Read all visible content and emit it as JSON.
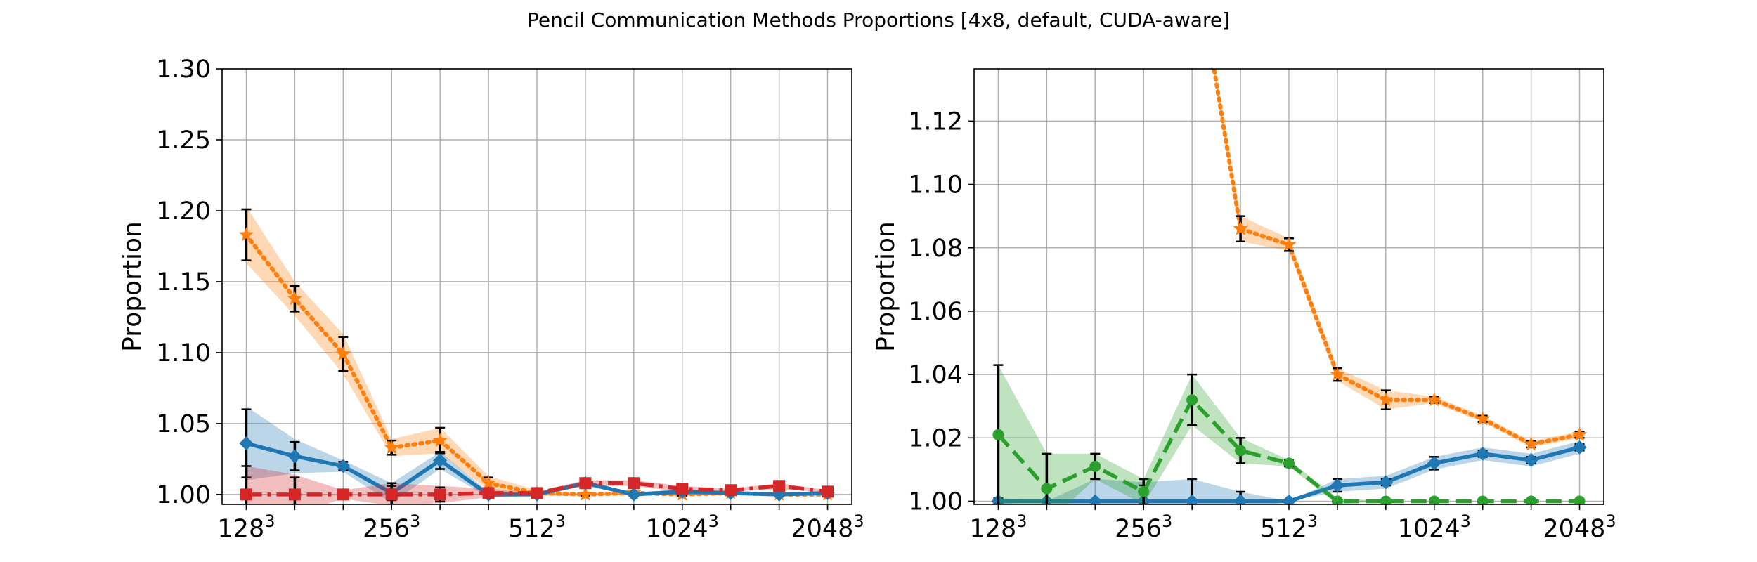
{
  "figure": {
    "title": "Pencil Communication Methods Proportions [4x8, default, CUDA-aware]"
  },
  "colors": {
    "blue": "#1f77b4",
    "orange": "#ff7f0e",
    "green": "#2ca02c",
    "red": "#d62728",
    "grid": "#b0b0b0",
    "errorbar": "#000000"
  },
  "chart_data": [
    {
      "type": "line",
      "ylabel": "Proportion",
      "xlabel": "",
      "x": [
        1,
        2,
        3,
        4,
        5,
        6,
        7,
        8,
        9,
        10,
        11,
        12,
        13
      ],
      "xtick_values": [
        1,
        4,
        7,
        10,
        13
      ],
      "xtick_labels": [
        "128",
        "256",
        "512",
        "1024",
        "2048"
      ],
      "xtick_superscript": "3",
      "xlim": [
        0.5,
        13.5
      ],
      "ylim": [
        0.993,
        1.3
      ],
      "ytick_values": [
        1.0,
        1.05,
        1.1,
        1.15,
        1.2,
        1.25,
        1.3
      ],
      "ytick_labels": [
        "1.00",
        "1.05",
        "1.10",
        "1.15",
        "1.20",
        "1.25",
        "1.30"
      ],
      "grid": true,
      "series": [
        {
          "color_key": "orange",
          "linestyle": "dotted",
          "marker": "star",
          "values": [
            1.183,
            1.138,
            1.099,
            1.033,
            1.038,
            1.008,
            1.001,
            1.0,
            1.001,
            1.0,
            1.001,
            1.0,
            1.0
          ],
          "err": [
            0.018,
            0.009,
            0.012,
            0.005,
            0.009,
            0.004,
            0.001,
            0.001,
            0.001,
            0.001,
            0.001,
            0.001,
            0.001
          ],
          "band": [
            0.02,
            0.012,
            0.014,
            0.006,
            0.009,
            0.005,
            0.002,
            0.001,
            0.001,
            0.001,
            0.001,
            0.001,
            0.001
          ]
        },
        {
          "color_key": "blue",
          "linestyle": "solid",
          "marker": "diamond",
          "values": [
            1.036,
            1.027,
            1.02,
            1.001,
            1.024,
            1.0,
            1.0,
            1.008,
            1.0,
            1.002,
            1.001,
            1.0,
            1.001
          ],
          "err": [
            0.024,
            0.01,
            0.003,
            0.005,
            0.006,
            0.002,
            0.001,
            0.002,
            0.001,
            0.002,
            0.001,
            0.001,
            0.001
          ],
          "band": [
            0.026,
            0.012,
            0.004,
            0.007,
            0.006,
            0.002,
            0.001,
            0.002,
            0.001,
            0.002,
            0.001,
            0.001,
            0.001
          ]
        },
        {
          "color_key": "red",
          "linestyle": "dashdot",
          "marker": "square",
          "values": [
            1.0,
            1.0,
            1.0,
            1.0,
            1.0,
            1.001,
            1.001,
            1.008,
            1.008,
            1.004,
            1.003,
            1.006,
            1.002
          ],
          "err": [
            0.02,
            0.012,
            0.002,
            0.008,
            0.005,
            0.002,
            0.001,
            0.002,
            0.002,
            0.002,
            0.001,
            0.002,
            0.001
          ],
          "band": [
            0.02,
            0.014,
            0.003,
            0.008,
            0.006,
            0.003,
            0.001,
            0.002,
            0.002,
            0.002,
            0.001,
            0.002,
            0.001
          ]
        }
      ]
    },
    {
      "type": "line",
      "ylabel": "Proportion",
      "xlabel": "",
      "x": [
        1,
        2,
        3,
        4,
        5,
        6,
        7,
        8,
        9,
        10,
        11,
        12,
        13
      ],
      "xtick_values": [
        1,
        4,
        7,
        10,
        13
      ],
      "xtick_labels": [
        "128",
        "256",
        "512",
        "1024",
        "2048"
      ],
      "xtick_superscript": "3",
      "xlim": [
        0.5,
        13.5
      ],
      "ylim": [
        0.999,
        1.1365
      ],
      "ytick_values": [
        1.0,
        1.02,
        1.04,
        1.06,
        1.08,
        1.1,
        1.12
      ],
      "ytick_labels": [
        "1.00",
        "1.02",
        "1.04",
        "1.06",
        "1.08",
        "1.10",
        "1.12"
      ],
      "grid": true,
      "series": [
        {
          "color_key": "orange",
          "linestyle": "dotted",
          "marker": "star",
          "x": [
            5.2,
            6,
            7,
            8,
            9,
            10,
            11,
            12,
            13
          ],
          "values": [
            1.16,
            1.086,
            1.081,
            1.04,
            1.032,
            1.032,
            1.026,
            1.018,
            1.021
          ],
          "err": [
            0,
            0.004,
            0.002,
            0.002,
            0.003,
            0.001,
            0.001,
            0.001,
            0.001
          ],
          "band": [
            0,
            0.004,
            0.002,
            0.002,
            0.003,
            0.001,
            0.001,
            0.001,
            0.001
          ]
        },
        {
          "color_key": "blue",
          "linestyle": "solid",
          "marker": "diamond",
          "values": [
            1.0,
            1.0,
            1.0,
            1.0,
            1.0,
            1.0,
            1.0,
            1.005,
            1.006,
            1.012,
            1.015,
            1.013,
            1.017
          ],
          "err": [
            0.001,
            0.0,
            0.0,
            0.005,
            0.007,
            0.003,
            0.0,
            0.002,
            0.001,
            0.002,
            0.001,
            0.001,
            0.001
          ],
          "band": [
            0.001,
            0.0,
            0.007,
            0.006,
            0.007,
            0.003,
            0.0,
            0.002,
            0.002,
            0.002,
            0.002,
            0.002,
            0.002
          ]
        },
        {
          "color_key": "green",
          "linestyle": "dashed",
          "marker": "circle",
          "values": [
            1.021,
            1.004,
            1.011,
            1.003,
            1.032,
            1.016,
            1.012,
            1.0,
            1.0,
            1.0,
            1.0,
            1.0,
            1.0
          ],
          "err": [
            0.022,
            0.011,
            0.004,
            0.004,
            0.008,
            0.004,
            0.001,
            0.001,
            0.0,
            0.0,
            0.0,
            0.0,
            0.0
          ],
          "band": [
            0.022,
            0.011,
            0.004,
            0.004,
            0.008,
            0.004,
            0.001,
            0.001,
            0.0,
            0.0,
            0.0,
            0.0,
            0.0
          ]
        }
      ]
    }
  ]
}
